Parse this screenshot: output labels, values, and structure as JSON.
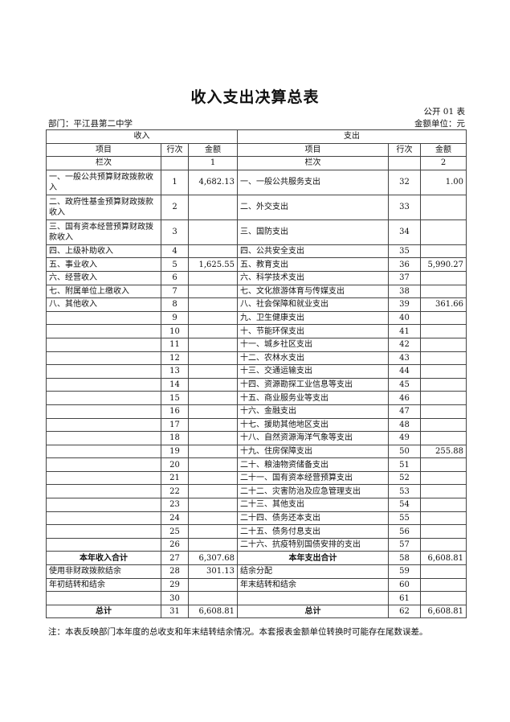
{
  "title": "收入支出决算总表",
  "form_no": "公开 01 表",
  "department": "部门：平江县第二中学",
  "unit": "金额单位：元",
  "header": {
    "income": "收入",
    "expense": "支出",
    "item": "项目",
    "row_no": "行次",
    "amount": "金额",
    "col_label": "栏次",
    "income_col": "1",
    "expense_col": "2"
  },
  "rows": [
    {
      "in_item": "一、一般公共预算财政拨款收入",
      "in_no": "1",
      "in_amt": "4,682.13",
      "ex_item": "一、一般公共服务支出",
      "ex_no": "32",
      "ex_amt": "1.00",
      "tall": true
    },
    {
      "in_item": "二、政府性基金预算财政拨款收入",
      "in_no": "2",
      "in_amt": "",
      "ex_item": "二、外交支出",
      "ex_no": "33",
      "ex_amt": "",
      "tall": true
    },
    {
      "in_item": "三、国有资本经营预算财政拨款收入",
      "in_no": "3",
      "in_amt": "",
      "ex_item": "三、国防支出",
      "ex_no": "34",
      "ex_amt": "",
      "tall": true
    },
    {
      "in_item": "四、上级补助收入",
      "in_no": "4",
      "in_amt": "",
      "ex_item": "四、公共安全支出",
      "ex_no": "35",
      "ex_amt": ""
    },
    {
      "in_item": "五、事业收入",
      "in_no": "5",
      "in_amt": "1,625.55",
      "ex_item": "五、教育支出",
      "ex_no": "36",
      "ex_amt": "5,990.27"
    },
    {
      "in_item": "六、经营收入",
      "in_no": "6",
      "in_amt": "",
      "ex_item": "六、科学技术支出",
      "ex_no": "37",
      "ex_amt": ""
    },
    {
      "in_item": "七、附属单位上缴收入",
      "in_no": "7",
      "in_amt": "",
      "ex_item": "七、文化旅游体育与传媒支出",
      "ex_no": "38",
      "ex_amt": ""
    },
    {
      "in_item": "八、其他收入",
      "in_no": "8",
      "in_amt": "",
      "ex_item": "八、社会保障和就业支出",
      "ex_no": "39",
      "ex_amt": "361.66"
    },
    {
      "in_item": "",
      "in_no": "9",
      "in_amt": "",
      "ex_item": "九、卫生健康支出",
      "ex_no": "40",
      "ex_amt": ""
    },
    {
      "in_item": "",
      "in_no": "10",
      "in_amt": "",
      "ex_item": "十、节能环保支出",
      "ex_no": "41",
      "ex_amt": ""
    },
    {
      "in_item": "",
      "in_no": "11",
      "in_amt": "",
      "ex_item": "十一、城乡社区支出",
      "ex_no": "42",
      "ex_amt": ""
    },
    {
      "in_item": "",
      "in_no": "12",
      "in_amt": "",
      "ex_item": "十二、农林水支出",
      "ex_no": "43",
      "ex_amt": ""
    },
    {
      "in_item": "",
      "in_no": "13",
      "in_amt": "",
      "ex_item": "十三、交通运输支出",
      "ex_no": "44",
      "ex_amt": ""
    },
    {
      "in_item": "",
      "in_no": "14",
      "in_amt": "",
      "ex_item": "十四、资源勘探工业信息等支出",
      "ex_no": "45",
      "ex_amt": ""
    },
    {
      "in_item": "",
      "in_no": "15",
      "in_amt": "",
      "ex_item": "十五、商业服务业等支出",
      "ex_no": "46",
      "ex_amt": ""
    },
    {
      "in_item": "",
      "in_no": "16",
      "in_amt": "",
      "ex_item": "十六、金融支出",
      "ex_no": "47",
      "ex_amt": ""
    },
    {
      "in_item": "",
      "in_no": "17",
      "in_amt": "",
      "ex_item": "十七、援助其他地区支出",
      "ex_no": "48",
      "ex_amt": ""
    },
    {
      "in_item": "",
      "in_no": "18",
      "in_amt": "",
      "ex_item": "十八、自然资源海洋气象等支出",
      "ex_no": "49",
      "ex_amt": ""
    },
    {
      "in_item": "",
      "in_no": "19",
      "in_amt": "",
      "ex_item": "十九、住房保障支出",
      "ex_no": "50",
      "ex_amt": "255.88"
    },
    {
      "in_item": "",
      "in_no": "20",
      "in_amt": "",
      "ex_item": "二十、粮油物资储备支出",
      "ex_no": "51",
      "ex_amt": ""
    },
    {
      "in_item": "",
      "in_no": "21",
      "in_amt": "",
      "ex_item": "二十一、国有资本经营预算支出",
      "ex_no": "52",
      "ex_amt": ""
    },
    {
      "in_item": "",
      "in_no": "22",
      "in_amt": "",
      "ex_item": "二十二、灾害防治及应急管理支出",
      "ex_no": "53",
      "ex_amt": ""
    },
    {
      "in_item": "",
      "in_no": "23",
      "in_amt": "",
      "ex_item": "二十三、其他支出",
      "ex_no": "54",
      "ex_amt": ""
    },
    {
      "in_item": "",
      "in_no": "24",
      "in_amt": "",
      "ex_item": "二十四、债务还本支出",
      "ex_no": "55",
      "ex_amt": ""
    },
    {
      "in_item": "",
      "in_no": "25",
      "in_amt": "",
      "ex_item": "二十五、债务付息支出",
      "ex_no": "56",
      "ex_amt": ""
    },
    {
      "in_item": "",
      "in_no": "26",
      "in_amt": "",
      "ex_item": "二十六、抗疫特别国债安排的支出",
      "ex_no": "57",
      "ex_amt": ""
    },
    {
      "in_item": "本年收入合计",
      "in_no": "27",
      "in_amt": "6,307.68",
      "ex_item": "本年支出合计",
      "ex_no": "58",
      "ex_amt": "6,608.81",
      "bold": true
    },
    {
      "in_item": "使用非财政拨款结余",
      "in_no": "28",
      "in_amt": "301.13",
      "ex_item": "结余分配",
      "ex_no": "59",
      "ex_amt": ""
    },
    {
      "in_item": "年初结转和结余",
      "in_no": "29",
      "in_amt": "",
      "ex_item": "年末结转和结余",
      "ex_no": "60",
      "ex_amt": ""
    },
    {
      "in_item": "",
      "in_no": "30",
      "in_amt": "",
      "ex_item": "",
      "ex_no": "61",
      "ex_amt": ""
    },
    {
      "in_item": "总计",
      "in_no": "31",
      "in_amt": "6,608.81",
      "ex_item": "总计",
      "ex_no": "62",
      "ex_amt": "6,608.81",
      "bold": true
    }
  ],
  "note": "注：本表反映部门本年度的总收支和年末结转结余情况。本套报表金额单位转换时可能存在尾数误差。"
}
